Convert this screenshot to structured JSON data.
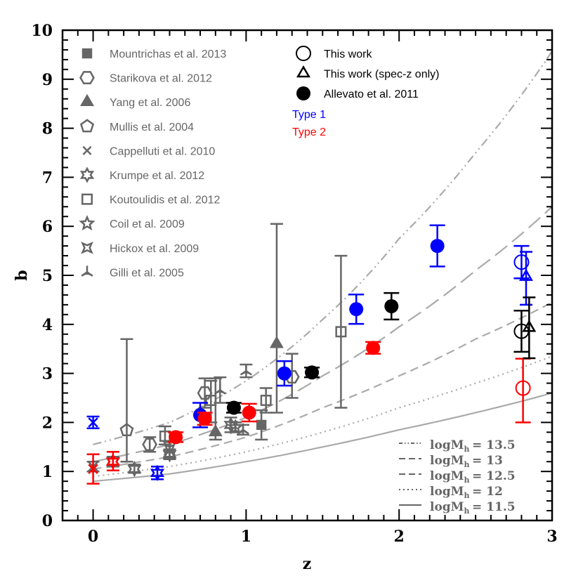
{
  "chart_data": {
    "type": "scatter",
    "xlabel": "z",
    "ylabel": "b",
    "xlim": [
      -0.2,
      3
    ],
    "ylim": [
      0,
      10
    ],
    "xticks": [
      "0",
      "1",
      "2",
      "3"
    ],
    "yticks": [
      "0",
      "1",
      "2",
      "3",
      "4",
      "5",
      "6",
      "7",
      "8",
      "9",
      "10"
    ],
    "grid": false,
    "colors": {
      "gray": "#666666",
      "type1": "#0000ff",
      "type2": "#ff0000",
      "black": "#000000",
      "curve": "#aaaaaa"
    },
    "legend_literature": [
      {
        "label": "Mountrichas et al. 2013",
        "marker": "square-filled"
      },
      {
        "label": "Starikova et al. 2012",
        "marker": "hexagon"
      },
      {
        "label": "Yang et al. 2006",
        "marker": "triangle-filled"
      },
      {
        "label": "Mullis et al. 2004",
        "marker": "pentagon"
      },
      {
        "label": "Cappelluti et al. 2010",
        "marker": "cross"
      },
      {
        "label": "Krumpe et al. 2012",
        "marker": "star6"
      },
      {
        "label": "Koutoulidis et al. 2012",
        "marker": "square"
      },
      {
        "label": "Coil et al. 2009",
        "marker": "star5"
      },
      {
        "label": "Hickox et al. 2009",
        "marker": "star4"
      },
      {
        "label": "Gilli et al. 2005",
        "marker": "tripod"
      }
    ],
    "legend_this": [
      {
        "label": "This work",
        "marker": "circle"
      },
      {
        "label": "This work (spec-z only)",
        "marker": "triangle"
      },
      {
        "label": "Allevato et al. 2011",
        "marker": "circle-filled"
      }
    ],
    "legend_types": [
      {
        "label": "Type 1",
        "color": "#0000ff"
      },
      {
        "label": "Type 2",
        "color": "#ff0000"
      }
    ],
    "curves": [
      {
        "label": "logM_h = 13.5",
        "name": "logM",
        "sub": "h",
        "value": "13.5",
        "style": "dash-dot-dot",
        "z": [
          0,
          0.5,
          1,
          1.5,
          2,
          2.5,
          3
        ],
        "b": [
          1.55,
          2.0,
          2.85,
          4.1,
          5.75,
          7.5,
          9.57
        ]
      },
      {
        "label": "logM_h = 13",
        "name": "logM",
        "sub": "h",
        "value": "13",
        "style": "long-dash",
        "z": [
          0,
          0.5,
          1,
          1.5,
          2,
          2.5,
          3
        ],
        "b": [
          1.2,
          1.55,
          2.1,
          2.95,
          3.95,
          5.1,
          6.4
        ]
      },
      {
        "label": "logM_h = 12.5",
        "name": "logM",
        "sub": "h",
        "value": "12.5",
        "style": "short-dash",
        "z": [
          0,
          0.5,
          1,
          1.5,
          2,
          2.5,
          3
        ],
        "b": [
          1.05,
          1.3,
          1.7,
          2.3,
          2.95,
          3.7,
          4.45
        ]
      },
      {
        "label": "logM_h = 12",
        "name": "logM",
        "sub": "h",
        "value": "12",
        "style": "dotted",
        "z": [
          0,
          0.5,
          1,
          1.5,
          2,
          2.5,
          3
        ],
        "b": [
          0.9,
          1.1,
          1.4,
          1.8,
          2.3,
          2.8,
          3.35
        ]
      },
      {
        "label": "logM_h = 11.5",
        "name": "logM",
        "sub": "h",
        "value": "11.5",
        "style": "solid",
        "z": [
          0,
          0.5,
          1,
          1.5,
          2,
          2.5,
          3
        ],
        "b": [
          0.8,
          0.95,
          1.2,
          1.5,
          1.85,
          2.2,
          2.6
        ]
      }
    ],
    "points": [
      {
        "marker": "square-filled",
        "color": "gray",
        "x": 1.1,
        "y": 1.95,
        "lo": 1.65,
        "hi": 2.25
      },
      {
        "marker": "hexagon",
        "color": "gray",
        "x": 0.73,
        "y": 2.6,
        "lo": 2.3,
        "hi": 2.9
      },
      {
        "marker": "hexagon",
        "color": "gray",
        "x": 1.3,
        "y": 2.93,
        "lo": 2.5,
        "hi": 3.4
      },
      {
        "marker": "hexagon",
        "color": "gray",
        "x": 0.37,
        "y": 1.55,
        "lo": 1.4,
        "hi": 1.7
      },
      {
        "marker": "triangle-filled",
        "color": "gray",
        "x": 0.8,
        "y": 1.8,
        "lo": 1.65,
        "hi": 2.9
      },
      {
        "marker": "triangle-filled",
        "color": "gray",
        "x": 1.2,
        "y": 3.6,
        "lo": 2.2,
        "hi": 6.05
      },
      {
        "marker": "pentagon",
        "color": "gray",
        "x": 0.22,
        "y": 1.84,
        "lo": 1.2,
        "hi": 3.7
      },
      {
        "marker": "cross",
        "color": "gray",
        "x": 0.0,
        "y": 1.1,
        "lo": 1.0,
        "hi": 1.2
      },
      {
        "marker": "star6",
        "color": "gray",
        "x": 0.13,
        "y": 1.2,
        "lo": 1.1,
        "hi": 1.3
      },
      {
        "marker": "star6",
        "color": "gray",
        "x": 0.27,
        "y": 1.05,
        "lo": 0.97,
        "hi": 1.14
      },
      {
        "marker": "star6",
        "color": "gray",
        "x": 0.5,
        "y": 1.35,
        "lo": 1.25,
        "hi": 1.45
      },
      {
        "marker": "star6",
        "color": "gray",
        "x": 0.9,
        "y": 1.95,
        "lo": 1.8,
        "hi": 2.1
      },
      {
        "marker": "square",
        "color": "gray",
        "x": 0.47,
        "y": 1.72,
        "lo": 1.55,
        "hi": 1.92
      },
      {
        "marker": "square",
        "color": "gray",
        "x": 0.77,
        "y": 2.45,
        "lo": 2.0,
        "hi": 2.85
      },
      {
        "marker": "square",
        "color": "gray",
        "x": 1.13,
        "y": 2.45,
        "lo": 2.2,
        "hi": 2.7
      },
      {
        "marker": "square",
        "color": "gray",
        "x": 1.62,
        "y": 3.85,
        "lo": 2.3,
        "hi": 5.4
      },
      {
        "marker": "star5",
        "color": "gray",
        "x": 0.93,
        "y": 1.9,
        "lo": 1.8,
        "hi": 2.0
      },
      {
        "marker": "star4",
        "color": "gray",
        "x": 0.5,
        "y": 1.45,
        "lo": 1.3,
        "hi": 1.6
      },
      {
        "marker": "tripod",
        "color": "gray",
        "x": 0.98,
        "y": 1.85,
        "lo": 1.75,
        "hi": 1.95
      },
      {
        "marker": "tripod",
        "color": "gray",
        "x": 1.0,
        "y": 3.05,
        "lo": 2.92,
        "hi": 3.18
      },
      {
        "marker": "tripod",
        "color": "gray",
        "x": 0.83,
        "y": 2.66,
        "lo": 2.4,
        "hi": 2.92
      },
      {
        "marker": "cross",
        "color": "type1",
        "x": 0.0,
        "y": 2.0,
        "lo": 1.88,
        "hi": 2.12
      },
      {
        "marker": "star6",
        "color": "type1",
        "x": 0.42,
        "y": 0.97,
        "lo": 0.84,
        "hi": 1.1
      },
      {
        "marker": "cross",
        "color": "type2",
        "x": 0.0,
        "y": 1.05,
        "lo": 0.75,
        "hi": 1.35
      },
      {
        "marker": "star6",
        "color": "type2",
        "x": 0.13,
        "y": 1.2,
        "lo": 1.02,
        "hi": 1.4
      },
      {
        "marker": "circle-filled",
        "color": "type1",
        "x": 0.7,
        "y": 2.15,
        "lo": 1.9,
        "hi": 2.4
      },
      {
        "marker": "circle-filled",
        "color": "type1",
        "x": 1.25,
        "y": 3.0,
        "lo": 2.75,
        "hi": 3.25
      },
      {
        "marker": "circle-filled",
        "color": "type1",
        "x": 1.72,
        "y": 4.31,
        "lo": 4.01,
        "hi": 4.61
      },
      {
        "marker": "circle-filled",
        "color": "type1",
        "x": 2.25,
        "y": 5.6,
        "lo": 5.18,
        "hi": 6.02
      },
      {
        "marker": "circle-filled",
        "color": "type2",
        "x": 0.54,
        "y": 1.7,
        "lo": 1.6,
        "hi": 1.8
      },
      {
        "marker": "circle-filled",
        "color": "type2",
        "x": 0.73,
        "y": 2.08,
        "lo": 1.95,
        "hi": 2.2
      },
      {
        "marker": "circle-filled",
        "color": "type2",
        "x": 1.02,
        "y": 2.2,
        "lo": 2.02,
        "hi": 2.38
      },
      {
        "marker": "circle-filled",
        "color": "type2",
        "x": 1.83,
        "y": 3.52,
        "lo": 3.4,
        "hi": 3.64
      },
      {
        "marker": "circle-filled",
        "color": "black",
        "x": 0.92,
        "y": 2.3,
        "lo": 2.2,
        "hi": 2.4
      },
      {
        "marker": "circle-filled",
        "color": "black",
        "x": 1.43,
        "y": 3.02,
        "lo": 2.92,
        "hi": 3.12
      },
      {
        "marker": "circle-filled",
        "color": "black",
        "x": 1.95,
        "y": 4.37,
        "lo": 4.1,
        "hi": 4.64
      },
      {
        "marker": "circle",
        "color": "type1",
        "x": 2.8,
        "y": 5.27,
        "lo": 4.94,
        "hi": 5.6
      },
      {
        "marker": "circle",
        "color": "black",
        "x": 2.8,
        "y": 3.86,
        "lo": 3.44,
        "hi": 4.28
      },
      {
        "marker": "circle",
        "color": "type2",
        "x": 2.81,
        "y": 2.7,
        "lo": 2.0,
        "hi": 3.3
      },
      {
        "marker": "triangle",
        "color": "type1",
        "x": 2.83,
        "y": 4.97,
        "lo": 4.4,
        "hi": 5.48
      },
      {
        "marker": "triangle",
        "color": "black",
        "x": 2.85,
        "y": 3.93,
        "lo": 3.31,
        "hi": 4.55
      }
    ]
  }
}
